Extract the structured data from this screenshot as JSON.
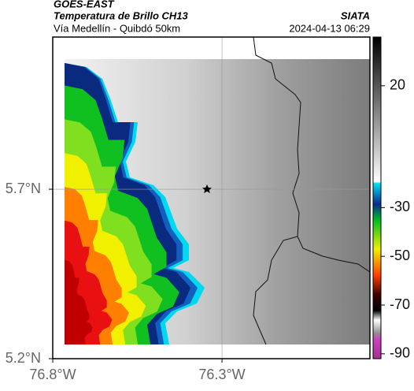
{
  "header": {
    "satellite": "GOES-EAST",
    "product": "Temperatura de Brillo CH13",
    "agency": "SIATA",
    "region": "Vía Medellín - Quibdó 50km",
    "timestamp": "2024-04-13 06:29"
  },
  "map": {
    "xlim": [
      -76.8,
      -75.863
    ],
    "ylim": [
      5.2,
      6.149
    ],
    "xticks": [
      {
        "value": -76.8,
        "label": "76.8°W"
      },
      {
        "value": -76.3,
        "label": "76.3°W"
      }
    ],
    "yticks": [
      {
        "value": 5.2,
        "label": "5.2°N"
      },
      {
        "value": 5.7,
        "label": "5.7°N"
      }
    ],
    "grid": true
  },
  "colorbar": {
    "clim": [
      -92,
      40
    ],
    "ticks": [
      20,
      -30,
      -50,
      -70,
      -90
    ]
  }
}
